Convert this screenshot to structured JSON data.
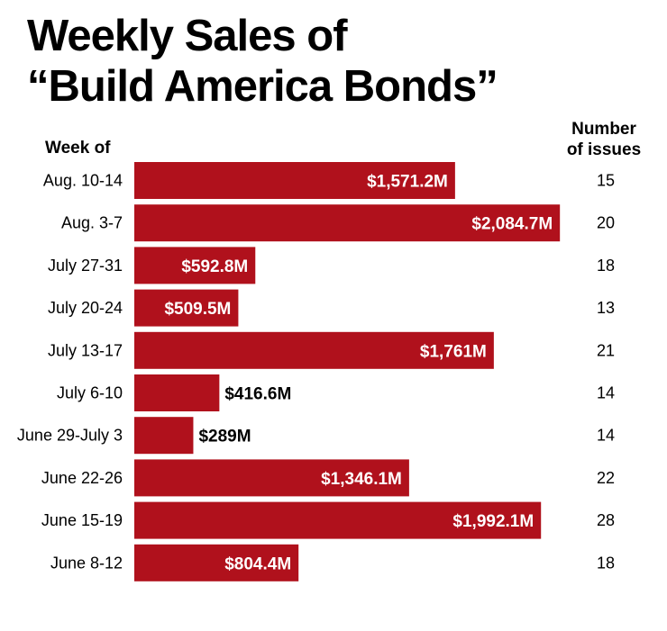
{
  "chart_data": {
    "type": "bar",
    "orientation": "horizontal",
    "title": [
      "Weekly Sales of",
      "“Build America Bonds”"
    ],
    "category_header": "Week of",
    "issues_header": [
      "Number",
      "of issues"
    ],
    "categories": [
      "Aug. 10-14",
      "Aug. 3-7",
      "July 27-31",
      "July 20-24",
      "July 13-17",
      "July 6-10",
      "June 29-July 3",
      "June 22-26",
      "June 15-19",
      "June 8-12"
    ],
    "values": [
      1571.2,
      2084.7,
      592.8,
      509.5,
      1761,
      416.6,
      289,
      1346.1,
      1992.1,
      804.4
    ],
    "value_labels": [
      "$1,571.2M",
      "$2,084.7M",
      "$592.8M",
      "$509.5M",
      "$1,761M",
      "$416.6M",
      "$289M",
      "$1,346.1M",
      "$1,992.1M",
      "$804.4M"
    ],
    "issues": [
      15,
      20,
      18,
      13,
      21,
      14,
      14,
      22,
      28,
      18
    ],
    "unit": "millions of dollars",
    "colors": {
      "bar": "#b0111c",
      "label_inside": "#ffffff",
      "label_outside": "#000000"
    }
  }
}
